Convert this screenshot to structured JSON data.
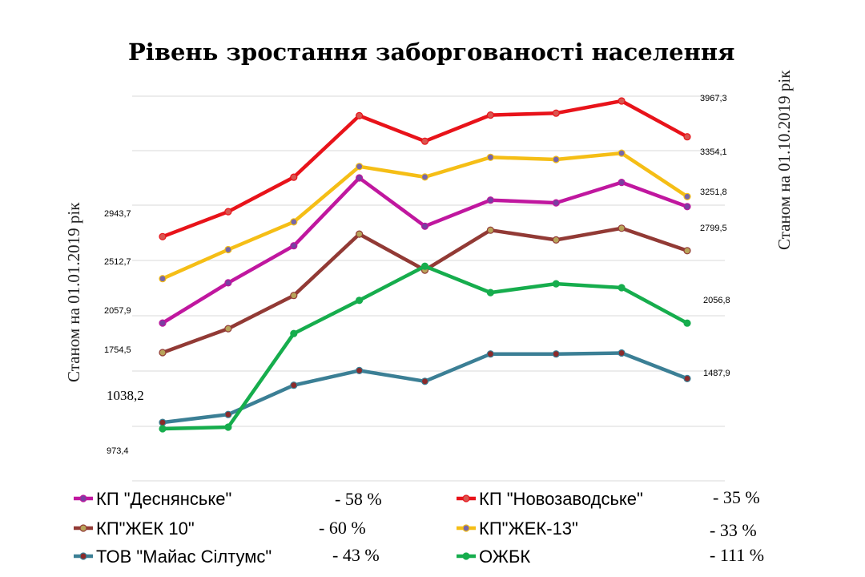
{
  "chart_data": {
    "type": "line",
    "title": "Рівень зростання заборгованості населення",
    "left_axis_label": "Станом на 01.01.2019 рік",
    "right_axis_label": "Станом на 01.10.2019 рік",
    "x": [
      1,
      2,
      3,
      4,
      5,
      6,
      7,
      8,
      9
    ],
    "gridlines": true,
    "legend_position": "bottom",
    "series": [
      {
        "name": "КП \"Деснянське\"",
        "change": "- 58 %",
        "color": "#c0179f",
        "marker_color": "#7a3fa0",
        "values": [
          2057.9,
          2470,
          2850,
          3546,
          3050,
          3318,
          3290,
          3500,
          3251.8
        ],
        "start_label": "2057,9",
        "end_label": "3251,8"
      },
      {
        "name": "КП \"Новозаводське\"",
        "change": "- 35 %",
        "color": "#e8131a",
        "marker_color": "#d9554f",
        "values": [
          2943.7,
          3200,
          3553,
          4184,
          3922,
          4190,
          4210,
          4335,
          3967.3
        ],
        "start_label": "2943,7",
        "end_label": "3967,3"
      },
      {
        "name": "КП\"ЖЕК 10\"",
        "change": "-   60 %",
        "color": "#923a35",
        "marker_color": "#b8a45a",
        "values": [
          1754.5,
          2000,
          2340,
          2970,
          2600,
          3010,
          2910,
          3030,
          2799.5
        ],
        "start_label": "1754,5",
        "end_label": "2799,5"
      },
      {
        "name": "КП\"ЖЕК-13\"",
        "change": "- 33 %",
        "color": "#f5be16",
        "marker_color": "#7767a8",
        "values": [
          2512.7,
          2810,
          3095,
          3663,
          3555,
          3757,
          3735,
          3800,
          3354.1
        ],
        "start_label": "2512,7",
        "end_label": "3354,1"
      },
      {
        "name": "ТОВ \"Майас Сілтумс\"",
        "change": "- 43 %",
        "color": "#3b7f95",
        "marker_color": "#8b2a2a",
        "values": [
          1038.2,
          1120,
          1420,
          1570,
          1460,
          1740,
          1740,
          1750,
          1487.9
        ],
        "start_label": "1038,2",
        "end_label": "1487,9"
      },
      {
        "name": "ОЖБК",
        "change": "- 111 %",
        "color": "#16ad4d",
        "marker_color": "#16ad4d",
        "values": [
          973.4,
          990,
          1950,
          2290,
          2640,
          2370,
          2460,
          2420,
          2056.8
        ],
        "start_label": "973,4",
        "end_label": "2056,8"
      }
    ]
  }
}
